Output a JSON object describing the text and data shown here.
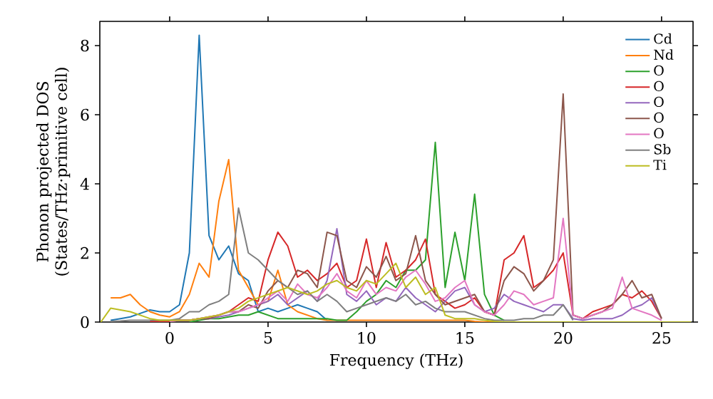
{
  "chart_data": {
    "type": "line",
    "xlabel": "Frequency (THz)",
    "ylabel": "Phonon projected DOS (States/THz·primitive cell)",
    "x": [
      -3.5,
      -3,
      -2.5,
      -2,
      -1.5,
      -1,
      -0.5,
      0,
      0.5,
      1,
      1.5,
      2,
      2.5,
      3,
      3.5,
      4,
      4.5,
      5,
      5.5,
      6,
      6.5,
      7,
      7.5,
      8,
      8.5,
      9,
      9.5,
      10,
      10.5,
      11,
      11.5,
      12,
      12.5,
      13,
      13.5,
      14,
      14.5,
      15,
      15.5,
      16,
      16.5,
      17,
      17.5,
      18,
      18.5,
      19,
      19.5,
      20,
      20.5,
      21,
      21.5,
      22,
      22.5,
      23,
      23.5,
      24,
      24.5,
      25,
      25.5,
      26,
      26.5
    ],
    "xlim": [
      -3.55,
      26.6
    ],
    "ylim": [
      0,
      8.7
    ],
    "xticks": [
      0,
      5,
      10,
      15,
      20,
      25
    ],
    "yticks": [
      0,
      2,
      4,
      6,
      8
    ],
    "grid": false,
    "legend": "top right",
    "marker": "none",
    "line_style": "solid",
    "series": [
      {
        "name": "Cd",
        "color": "#1f77b4",
        "values": [
          null,
          0.05,
          0.1,
          0.15,
          0.25,
          0.35,
          0.3,
          0.3,
          0.5,
          2.0,
          8.3,
          2.5,
          1.8,
          2.2,
          1.4,
          1.2,
          0.3,
          0.4,
          0.3,
          0.4,
          0.5,
          0.4,
          0.3,
          0.05,
          null,
          null,
          null,
          null,
          null,
          null,
          null,
          null,
          null,
          null,
          null,
          null,
          null,
          null,
          null,
          null,
          null,
          null,
          null,
          null,
          null,
          null,
          null,
          null,
          null,
          null,
          null,
          null,
          null,
          null,
          null,
          null,
          null,
          null,
          null,
          null,
          null
        ]
      },
      {
        "name": "Nd",
        "color": "#ff7f0e",
        "values": [
          null,
          0.7,
          0.7,
          0.8,
          0.5,
          0.3,
          0.2,
          0.15,
          0.3,
          0.8,
          1.7,
          1.3,
          3.5,
          4.7,
          1.5,
          1.0,
          0.5,
          0.6,
          1.5,
          0.5,
          0.3,
          0.2,
          0.1,
          0.05,
          0.05,
          0.05,
          0.05,
          0.05,
          0.05,
          0.05,
          0.05,
          0.05,
          0.05,
          0.05,
          0.05,
          0.05,
          0.05,
          0.05,
          0.02,
          0,
          0,
          0,
          null,
          null,
          null,
          null,
          null,
          null,
          null,
          null,
          null,
          null,
          null,
          null,
          null,
          null,
          null,
          null,
          null,
          null,
          null
        ]
      },
      {
        "name": "O",
        "color": "#2ca02c",
        "values": [
          null,
          null,
          null,
          null,
          null,
          null,
          null,
          null,
          null,
          0,
          0.05,
          0.1,
          0.1,
          0.15,
          0.2,
          0.2,
          0.3,
          0.2,
          0.1,
          0.1,
          0.1,
          0.1,
          0.1,
          0.1,
          0.05,
          0.05,
          0.3,
          0.6,
          0.8,
          1.2,
          1.0,
          1.5,
          1.5,
          1.8,
          5.2,
          1.0,
          2.6,
          1.2,
          3.7,
          0.8,
          0.2,
          0.05,
          null,
          null,
          null,
          null,
          null,
          null,
          null,
          null,
          null,
          null,
          null,
          null,
          null,
          null,
          null,
          null,
          null,
          null,
          null
        ]
      },
      {
        "name": "O",
        "color": "#d62728",
        "values": [
          null,
          null,
          null,
          null,
          null,
          0.02,
          0.02,
          0.02,
          0.05,
          0.05,
          0.1,
          0.15,
          0.2,
          0.3,
          0.5,
          0.7,
          0.6,
          1.8,
          2.6,
          2.2,
          1.3,
          1.5,
          1.2,
          1.4,
          1.7,
          1.0,
          1.2,
          2.4,
          1.0,
          2.3,
          1.3,
          1.5,
          1.8,
          2.4,
          0.8,
          0.6,
          0.4,
          0.5,
          0.7,
          0.3,
          0.2,
          1.8,
          2.0,
          2.5,
          1.0,
          1.2,
          1.5,
          2.0,
          0.2,
          0.1,
          0.3,
          0.4,
          0.5,
          0.8,
          0.7,
          0.9,
          0.6,
          0.1,
          null,
          null,
          null
        ]
      },
      {
        "name": "O",
        "color": "#9467bd",
        "values": [
          null,
          null,
          null,
          null,
          null,
          null,
          null,
          0.02,
          0.05,
          0.05,
          0.1,
          0.1,
          0.15,
          0.2,
          0.3,
          0.4,
          0.5,
          0.6,
          0.8,
          0.5,
          0.7,
          0.9,
          0.6,
          1.2,
          2.7,
          0.8,
          0.6,
          0.9,
          0.5,
          0.7,
          0.6,
          1.0,
          0.7,
          0.5,
          0.3,
          0.6,
          0.9,
          1.0,
          0.5,
          0.3,
          0.4,
          0.8,
          0.6,
          0.5,
          0.4,
          0.3,
          0.5,
          0.5,
          0.1,
          0.05,
          0.1,
          0.1,
          0.1,
          0.2,
          0.4,
          0.5,
          0.7,
          0.1,
          null,
          null,
          null
        ]
      },
      {
        "name": "O",
        "color": "#8c564b",
        "values": [
          null,
          null,
          null,
          null,
          null,
          null,
          null,
          0.02,
          0.05,
          0.05,
          0.1,
          0.1,
          0.2,
          0.3,
          0.3,
          0.5,
          0.4,
          0.9,
          1.2,
          1.0,
          1.5,
          1.4,
          1.0,
          2.6,
          2.5,
          1.2,
          1.0,
          1.6,
          1.3,
          1.9,
          1.2,
          1.4,
          2.5,
          1.2,
          0.8,
          0.5,
          0.6,
          0.7,
          0.8,
          0.3,
          0.2,
          1.2,
          1.6,
          1.4,
          0.9,
          1.2,
          1.8,
          6.6,
          0.2,
          0.1,
          0.2,
          0.3,
          0.5,
          0.8,
          1.2,
          0.7,
          0.8,
          0.1,
          null,
          null,
          null
        ]
      },
      {
        "name": "O",
        "color": "#e377c2",
        "values": [
          null,
          null,
          null,
          null,
          null,
          null,
          null,
          0.02,
          0.05,
          0.05,
          0.1,
          0.15,
          0.2,
          0.3,
          0.3,
          0.4,
          0.5,
          0.7,
          0.9,
          0.6,
          1.1,
          0.8,
          0.7,
          1.0,
          1.4,
          0.9,
          0.7,
          1.2,
          0.8,
          1.0,
          0.9,
          1.3,
          1.5,
          1.1,
          0.6,
          0.7,
          1.0,
          1.2,
          0.5,
          0.3,
          0.2,
          0.5,
          0.9,
          0.8,
          0.5,
          0.6,
          0.7,
          3.0,
          0.2,
          0.1,
          0.2,
          0.3,
          0.4,
          1.3,
          0.4,
          0.3,
          0.2,
          0.05,
          null,
          null,
          null
        ]
      },
      {
        "name": "Sb",
        "color": "#7f7f7f",
        "values": [
          null,
          0.02,
          0.03,
          0.05,
          0.05,
          0.05,
          0.05,
          0.05,
          0.1,
          0.3,
          0.3,
          0.5,
          0.6,
          0.8,
          3.3,
          2.0,
          1.8,
          1.5,
          1.2,
          1.0,
          0.8,
          0.9,
          0.6,
          0.8,
          0.6,
          0.3,
          0.4,
          0.5,
          0.6,
          0.7,
          0.6,
          0.8,
          0.5,
          0.6,
          0.4,
          0.3,
          0.3,
          0.3,
          0.2,
          0.1,
          0.05,
          0.05,
          0.05,
          0.1,
          0.1,
          0.2,
          0.2,
          0.5,
          0.05,
          null,
          null,
          null,
          null,
          null,
          null,
          null,
          null,
          null,
          null,
          null,
          null
        ]
      },
      {
        "name": "Ti",
        "color": "#bcbd22",
        "values": [
          0,
          0.4,
          0.35,
          0.3,
          0.2,
          0.1,
          0.05,
          0.05,
          0.05,
          0.05,
          0.1,
          0.15,
          0.2,
          0.3,
          0.4,
          0.6,
          0.7,
          0.8,
          0.9,
          1.0,
          0.9,
          0.8,
          0.9,
          1.1,
          1.2,
          1.0,
          0.9,
          1.2,
          1.1,
          1.4,
          1.7,
          1.0,
          1.3,
          0.8,
          1.0,
          0.2,
          0.1,
          0.1,
          0.1,
          0.05,
          0.02,
          0,
          0,
          0,
          0,
          0,
          0,
          0,
          0,
          0,
          0,
          0,
          0,
          0,
          0,
          0,
          0,
          0,
          0,
          0,
          0
        ]
      }
    ]
  }
}
